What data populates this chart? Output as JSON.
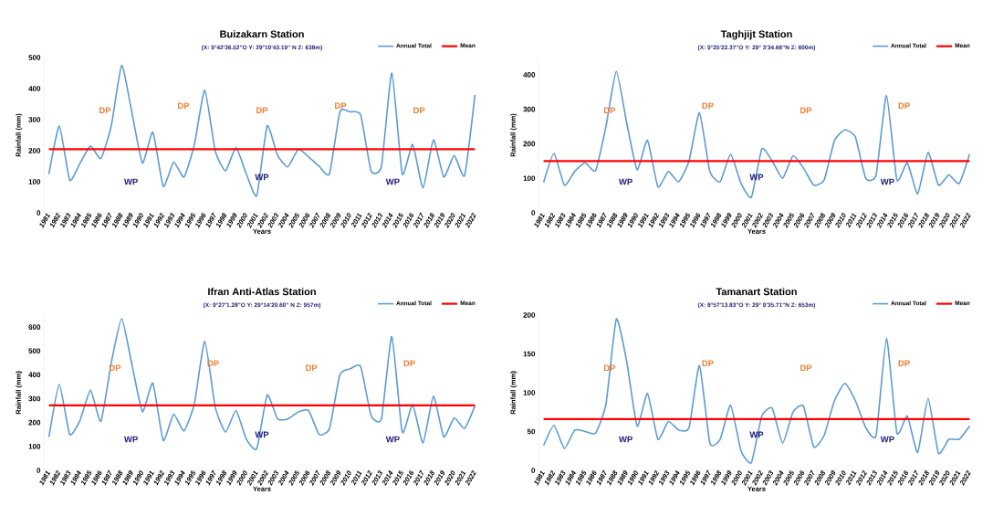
{
  "chart_data": [
    {
      "type": "line",
      "title": "Buizakarn Station",
      "subtitle": "(X:  9°42'36.52\"O  Y: 29°10'43.19\" N  Z: 638m)",
      "xlabel": "Years",
      "ylabel": "Rainfall (mm)",
      "categories": [
        "1981",
        "1982",
        "1983",
        "1984",
        "1985",
        "1986",
        "1987",
        "1988",
        "1989",
        "1990",
        "1991",
        "1992",
        "1993",
        "1994",
        "1995",
        "1996",
        "1997",
        "1998",
        "1999",
        "2000",
        "2001",
        "2002",
        "2003",
        "2004",
        "2005",
        "2006",
        "2007",
        "2008",
        "2009",
        "2010",
        "2011",
        "2012",
        "2013",
        "2014",
        "2015",
        "2016",
        "2017",
        "2018",
        "2019",
        "2020",
        "2021",
        "2022"
      ],
      "series": [
        {
          "name": "Annual Total",
          "color": "#5b9bd5",
          "values": [
            125,
            280,
            105,
            160,
            215,
            175,
            280,
            475,
            320,
            160,
            260,
            85,
            163,
            115,
            220,
            395,
            200,
            135,
            210,
            125,
            55,
            280,
            185,
            148,
            205,
            180,
            150,
            125,
            325,
            325,
            315,
            135,
            150,
            450,
            125,
            220,
            80,
            235,
            115,
            185,
            120,
            380
          ]
        }
      ],
      "ref_lines": [
        {
          "axis": "y",
          "value": 205,
          "label": "Mean",
          "color": "#ff0000"
        }
      ],
      "annotations": [
        "DP",
        "DP",
        "DP",
        "DP",
        "DP",
        "WP",
        "WP",
        "WP"
      ],
      "ylim": [
        0,
        500
      ],
      "yticks": [
        0,
        100,
        200,
        300,
        400,
        500
      ],
      "legend": "top right"
    },
    {
      "type": "line",
      "title": "Taghjijt Station",
      "subtitle": "(X:  9°25'22.37\"O  Y: 29° 3'34.66\"N  Z: 600m)",
      "xlabel": "Years",
      "ylabel": "Rainfall (mm)",
      "categories": [
        "1981",
        "1982",
        "1983",
        "1984",
        "1985",
        "1986",
        "1987",
        "1988",
        "1989",
        "1990",
        "1991",
        "1992",
        "1993",
        "1994",
        "1995",
        "1996",
        "1997",
        "1998",
        "1999",
        "2000",
        "2001",
        "2002",
        "2003",
        "2004",
        "2005",
        "2006",
        "2007",
        "2008",
        "2009",
        "2010",
        "2011",
        "2012",
        "2013",
        "2014",
        "2015",
        "2016",
        "2017",
        "2018",
        "2019",
        "2020",
        "2021",
        "2022"
      ],
      "series": [
        {
          "name": "Annual Total",
          "color": "#5b9bd5",
          "values": [
            88,
            172,
            80,
            120,
            145,
            122,
            250,
            410,
            260,
            125,
            210,
            75,
            120,
            90,
            150,
            290,
            120,
            90,
            170,
            85,
            45,
            185,
            150,
            100,
            165,
            130,
            80,
            95,
            210,
            240,
            220,
            100,
            110,
            340,
            95,
            145,
            55,
            175,
            80,
            110,
            85,
            170
          ]
        }
      ],
      "ref_lines": [
        {
          "axis": "y",
          "value": 150,
          "label": "Mean",
          "color": "#ff0000"
        }
      ],
      "annotations": [
        "DP",
        "DP",
        "DP",
        "DP",
        "WP",
        "WP",
        "WP"
      ],
      "ylim": [
        0,
        450
      ],
      "yticks": [
        0,
        100,
        200,
        300,
        400
      ],
      "legend": "top right"
    },
    {
      "type": "line",
      "title": "Ifran Anti-Atlas Station",
      "subtitle": "(X:  9°27'1.28\"O  Y: 29°14'20.60\" N  Z: 957m)",
      "xlabel": "Years",
      "ylabel": "Rainfall (mm)",
      "categories": [
        "1981",
        "1982",
        "1983",
        "1984",
        "1985",
        "1986",
        "1987",
        "1988",
        "1989",
        "1990",
        "1991",
        "1992",
        "1993",
        "1994",
        "1995",
        "1996",
        "1997",
        "1998",
        "1999",
        "2000",
        "2001",
        "2002",
        "2003",
        "2004",
        "2005",
        "2006",
        "2007",
        "2008",
        "2009",
        "2010",
        "2011",
        "2012",
        "2013",
        "2014",
        "2015",
        "2016",
        "2017",
        "2018",
        "2019",
        "2020",
        "2021",
        "2022"
      ],
      "series": [
        {
          "name": "Annual Total",
          "color": "#5b9bd5",
          "values": [
            140,
            360,
            150,
            210,
            335,
            205,
            450,
            635,
            440,
            245,
            365,
            125,
            235,
            165,
            280,
            540,
            265,
            160,
            250,
            130,
            90,
            315,
            215,
            215,
            245,
            250,
            150,
            175,
            400,
            425,
            435,
            230,
            215,
            560,
            160,
            275,
            115,
            310,
            140,
            220,
            175,
            270
          ]
        }
      ],
      "ref_lines": [
        {
          "axis": "y",
          "value": 272,
          "label": "Mean",
          "color": "#ff0000"
        }
      ],
      "annotations": [
        "DP",
        "DP",
        "DP",
        "DP",
        "WP",
        "WP",
        "WP"
      ],
      "ylim": [
        0,
        650
      ],
      "yticks": [
        0,
        100,
        200,
        300,
        400,
        500,
        600
      ],
      "legend": "top right"
    },
    {
      "type": "line",
      "title": "Tamanart Station",
      "subtitle": "(X:  8°57'13.83\"O  Y: 29° 9'35.71\"N  Z: 653m)",
      "xlabel": "Years",
      "ylabel": "Rainfall (mm)",
      "categories": [
        "1981",
        "1982",
        "1983",
        "1984",
        "1985",
        "1986",
        "1987",
        "1988",
        "1989",
        "1990",
        "1991",
        "1992",
        "1993",
        "1994",
        "1995",
        "1996",
        "1997",
        "1998",
        "1999",
        "2000",
        "2001",
        "2002",
        "2003",
        "2004",
        "2005",
        "2006",
        "2007",
        "2008",
        "2009",
        "2010",
        "2011",
        "2012",
        "2013",
        "2014",
        "2015",
        "2016",
        "2017",
        "2018",
        "2019",
        "2020",
        "2021",
        "2022"
      ],
      "series": [
        {
          "name": "Annual Total",
          "color": "#5b9bd5",
          "values": [
            32,
            58,
            28,
            52,
            50,
            48,
            85,
            195,
            140,
            57,
            99,
            40,
            63,
            52,
            55,
            135,
            35,
            40,
            84,
            25,
            10,
            70,
            80,
            35,
            75,
            83,
            30,
            45,
            90,
            112,
            90,
            55,
            45,
            170,
            48,
            70,
            23,
            93,
            22,
            40,
            40,
            57
          ]
        }
      ],
      "ref_lines": [
        {
          "axis": "y",
          "value": 66,
          "label": "Mean",
          "color": "#ff0000"
        }
      ],
      "annotations": [
        "DP",
        "DP",
        "DP",
        "DP",
        "WP",
        "WP",
        "WP"
      ],
      "ylim": [
        0,
        200
      ],
      "yticks": [
        0,
        50,
        100,
        150,
        200
      ],
      "legend": "top right"
    }
  ]
}
